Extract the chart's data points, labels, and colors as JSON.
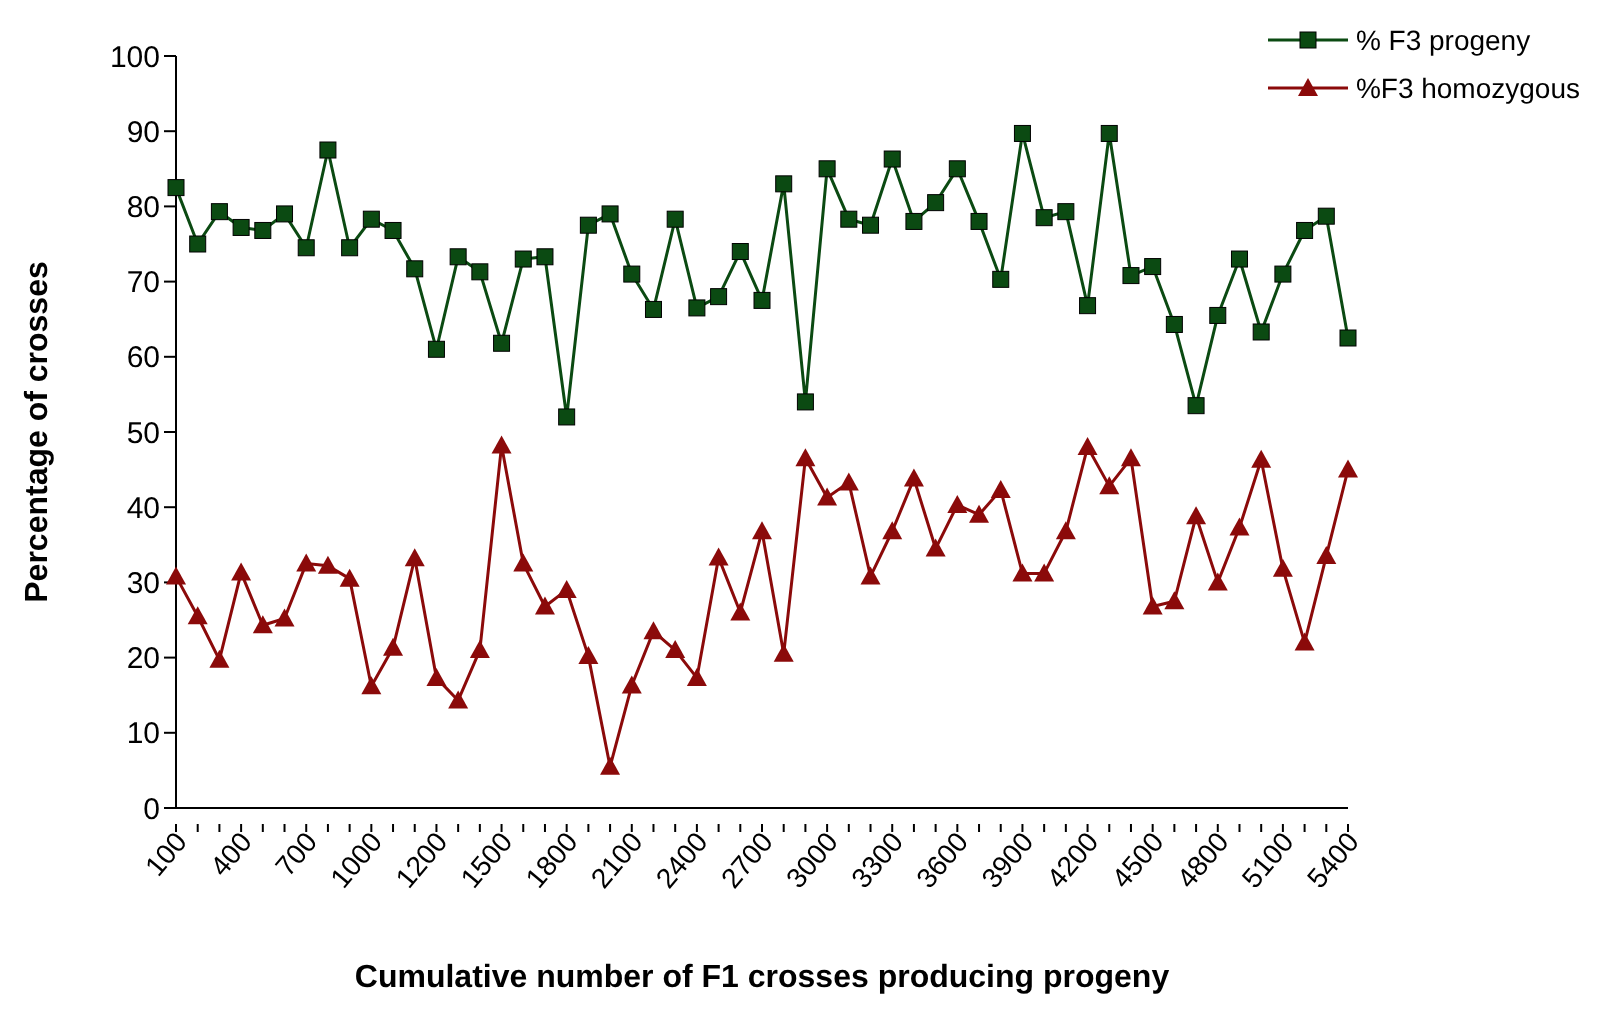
{
  "chart_data": {
    "type": "line",
    "xlabel": "Cumulative number of F1 crosses producing progeny",
    "ylabel": "Percentage of crosses",
    "categories": [
      "100",
      null,
      null,
      "400",
      null,
      null,
      "700",
      null,
      null,
      "1000",
      null,
      null,
      "1200",
      null,
      null,
      "1500",
      null,
      null,
      "1800",
      null,
      null,
      "2100",
      null,
      null,
      "2400",
      null,
      null,
      "2700",
      null,
      null,
      "3000",
      null,
      null,
      "3300",
      null,
      null,
      "3600",
      null,
      null,
      "3900",
      null,
      null,
      "4200",
      null,
      null,
      "4500",
      null,
      null,
      "4800",
      null,
      null,
      "5100",
      null,
      null,
      "5400"
    ],
    "series": [
      {
        "name": "% F3 progeny",
        "color": "#0b4a12",
        "marker": "square",
        "values": [
          82.5,
          75,
          79.3,
          77.2,
          76.8,
          79,
          74.5,
          87.5,
          74.5,
          78.3,
          76.8,
          71.7,
          61,
          73.3,
          71.3,
          61.8,
          73,
          73.3,
          52,
          77.5,
          79,
          71,
          66.3,
          78.3,
          66.5,
          68,
          74,
          67.5,
          83,
          54,
          85,
          78.3,
          77.5,
          86.3,
          78,
          80.5,
          85,
          78,
          70.3,
          89.7,
          78.5,
          79.3,
          66.8,
          89.7,
          70.8,
          72,
          64.3,
          53.5,
          65.5,
          73,
          63.3,
          71,
          76.8,
          78.7,
          62.5
        ]
      },
      {
        "name": "%F3 homozygous",
        "color": "#8b0a0a",
        "marker": "triangle",
        "values": [
          30.8,
          25.5,
          19.7,
          31.3,
          24.3,
          25.2,
          32.5,
          32.2,
          30.5,
          16.2,
          21.3,
          33.2,
          17.3,
          14.3,
          21,
          48.2,
          32.5,
          26.8,
          29,
          20.2,
          5.5,
          16.3,
          23.5,
          21,
          17.3,
          33.3,
          26,
          36.8,
          20.5,
          46.5,
          41.3,
          43.3,
          30.8,
          36.8,
          43.8,
          34.5,
          40.3,
          39,
          42.3,
          31.2,
          31.2,
          36.8,
          48,
          42.8,
          46.5,
          26.8,
          27.5,
          38.8,
          30,
          37.3,
          46.3,
          31.8,
          22,
          33.5,
          45
        ]
      }
    ],
    "ylim": [
      0,
      100
    ],
    "yticks": [
      0,
      10,
      20,
      30,
      40,
      50,
      60,
      70,
      80,
      90,
      100
    ],
    "grid": false,
    "legend": "top right"
  }
}
